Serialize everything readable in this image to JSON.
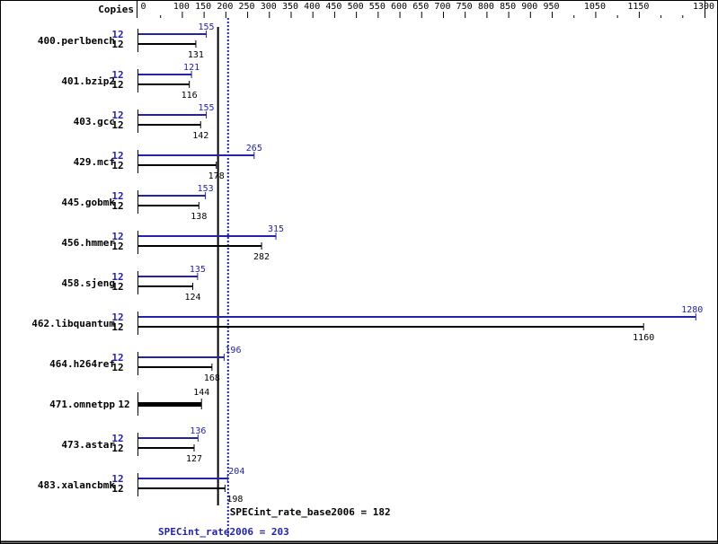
{
  "chart_data": {
    "type": "bar",
    "orientation": "horizontal",
    "header_label": "Copies",
    "colors": {
      "peak": "#2222aa",
      "base": "#000000"
    },
    "x_ticks_labeled": [
      0,
      100,
      150,
      200,
      250,
      300,
      350,
      400,
      450,
      500,
      550,
      600,
      650,
      700,
      750,
      800,
      850,
      900,
      950,
      1050,
      1150,
      1300
    ],
    "x_ticks_minor": [
      50,
      1000,
      1100,
      1200,
      1250
    ],
    "xlim": [
      0,
      1300
    ],
    "categories": [
      "400.perlbench",
      "401.bzip2",
      "403.gcc",
      "429.mcf",
      "445.gobmk",
      "456.hmmer",
      "458.sjeng",
      "462.libquantum",
      "464.h264ref",
      "471.omnetpp",
      "473.astar",
      "483.xalancbmk"
    ],
    "series": [
      {
        "name": "SPECint_rate2006",
        "copies": [
          12,
          12,
          12,
          12,
          12,
          12,
          12,
          12,
          12,
          null,
          12,
          12
        ],
        "values": [
          155,
          121,
          155,
          265,
          153,
          315,
          135,
          1280,
          196,
          null,
          136,
          204
        ]
      },
      {
        "name": "SPECint_rate_base2006",
        "copies": [
          12,
          12,
          12,
          12,
          12,
          12,
          12,
          12,
          12,
          12,
          12,
          12
        ],
        "values": [
          131,
          116,
          142,
          178,
          138,
          282,
          124,
          1160,
          168,
          144,
          127,
          198
        ]
      }
    ],
    "reference_lines": [
      {
        "label": "SPECint_rate_base2006 = 182",
        "value": 182,
        "style": "solid"
      },
      {
        "label": "SPECint_rate2006 = 203",
        "value": 203,
        "style": "dotted"
      }
    ]
  }
}
